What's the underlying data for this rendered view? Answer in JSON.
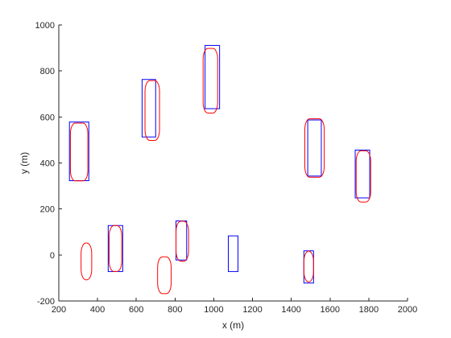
{
  "chart_data": {
    "type": "scatter",
    "title": "",
    "xlabel": "x (m)",
    "ylabel": "y (m)",
    "xlim": [
      200,
      2000
    ],
    "ylim": [
      -200,
      1000
    ],
    "xticks": [
      200,
      400,
      600,
      800,
      1000,
      1200,
      1400,
      1600,
      1800,
      2000
    ],
    "yticks": [
      -200,
      0,
      200,
      400,
      600,
      800,
      1000
    ],
    "grid": false,
    "legend": "none",
    "colors": {
      "blue": "#0000ff",
      "red": "#ff0000",
      "axis": "#262626"
    },
    "series": [
      {
        "color": "blue",
        "shape": "rectangle",
        "boxes": [
          {
            "x": [
              255,
              355
            ],
            "y": [
              323,
              578
            ]
          },
          {
            "x": [
              455,
              530
            ],
            "y": [
              -72,
              128
            ]
          },
          {
            "x": [
              630,
              700
            ],
            "y": [
              513,
              763
            ]
          },
          {
            "x": [
              805,
              860
            ],
            "y": [
              -22,
              148
            ]
          },
          {
            "x": [
              955,
              1030
            ],
            "y": [
              636,
              911
            ]
          },
          {
            "x": [
              1075,
              1125
            ],
            "y": [
              -72,
              83
            ]
          },
          {
            "x": [
              1465,
              1515
            ],
            "y": [
              -122,
              18
            ]
          },
          {
            "x": [
              1485,
              1555
            ],
            "y": [
              343,
              587
            ]
          },
          {
            "x": [
              1730,
              1805
            ],
            "y": [
              248,
              456
            ]
          }
        ]
      },
      {
        "color": "red",
        "shape": "rounded",
        "boxes": [
          {
            "x": [
              260,
              350
            ],
            "y": [
              322,
              573
            ]
          },
          {
            "x": [
              315,
              370
            ],
            "y": [
              -108,
              52
            ]
          },
          {
            "x": [
              460,
              525
            ],
            "y": [
              -72,
              128
            ]
          },
          {
            "x": [
              645,
              720
            ],
            "y": [
              498,
              758
            ]
          },
          {
            "x": [
              710,
              780
            ],
            "y": [
              -168,
              -8
            ]
          },
          {
            "x": [
              805,
              870
            ],
            "y": [
              -27,
              147
            ]
          },
          {
            "x": [
              945,
              1020
            ],
            "y": [
              617,
              898
            ]
          },
          {
            "x": [
              1465,
              1515
            ],
            "y": [
              -117,
              17
            ]
          },
          {
            "x": [
              1470,
              1570
            ],
            "y": [
              338,
              592
            ]
          },
          {
            "x": [
              1735,
              1810
            ],
            "y": [
              230,
              453
            ]
          }
        ]
      }
    ]
  }
}
